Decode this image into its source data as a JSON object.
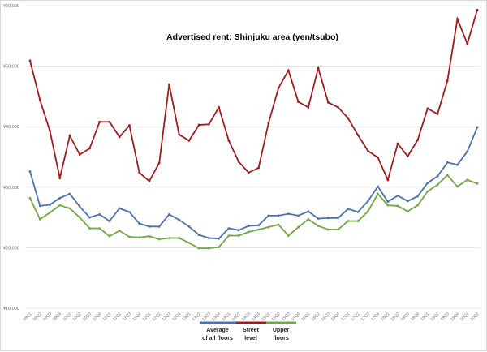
{
  "chart_data": {
    "type": "line",
    "title": "Advertised rent: Shinjuku area (yen/tsubo)",
    "xlabel": "",
    "ylabel": "",
    "ylim": [
      10000,
      60000
    ],
    "yticks": [
      "¥10,000",
      "¥20,000",
      "¥30,000",
      "¥40,000",
      "¥50,000",
      "¥60,000"
    ],
    "grid": true,
    "legend_position": "bottom",
    "categories": [
      "09Q1",
      "09Q2",
      "09Q3",
      "09Q4",
      "10Q1",
      "10Q2",
      "10Q3",
      "10Q4",
      "11Q1",
      "11Q2",
      "11Q3",
      "11Q4",
      "12Q1",
      "12Q2",
      "12Q3",
      "12Q4",
      "13Q1",
      "13Q2",
      "13Q3",
      "13Q4",
      "14Q1",
      "14Q2",
      "14Q3",
      "14Q4",
      "15Q1",
      "15Q2",
      "15Q3",
      "15Q4",
      "16Q1",
      "16Q2",
      "16Q3",
      "16Q4",
      "17Q1",
      "17Q2",
      "17Q3",
      "17Q4",
      "18Q1",
      "18Q2",
      "18Q3",
      "18Q4",
      "19Q1",
      "19Q2",
      "19Q3",
      "19Q4",
      "20Q1",
      "20Q2"
    ],
    "series": [
      {
        "name": "Average of all floors",
        "color": "#4a72b0",
        "values": [
          32600,
          26900,
          27100,
          28200,
          28900,
          26800,
          25000,
          25500,
          24400,
          26500,
          25900,
          24000,
          23500,
          23500,
          25500,
          24600,
          23500,
          22100,
          21600,
          21500,
          23200,
          22900,
          23600,
          23700,
          25300,
          25300,
          25600,
          25300,
          26000,
          24800,
          24900,
          24900,
          26400,
          25900,
          27700,
          30100,
          27600,
          28600,
          27700,
          28500,
          30700,
          31800,
          34100,
          33700,
          35900,
          39900
        ]
      },
      {
        "name": "Street level",
        "color": "#a01c1c",
        "values": [
          50900,
          44400,
          39300,
          31500,
          38500,
          35400,
          36400,
          40800,
          40800,
          38300,
          40200,
          32400,
          31000,
          34000,
          47000,
          38700,
          37700,
          40300,
          40400,
          43200,
          37700,
          34200,
          32400,
          33200,
          40600,
          46400,
          49300,
          44100,
          43200,
          49700,
          44000,
          43200,
          41400,
          38600,
          36000,
          34900,
          31200,
          37200,
          35100,
          37800,
          43000,
          42100,
          47600,
          57800,
          53700,
          59300
        ]
      },
      {
        "name": "Upper floors",
        "color": "#70a845",
        "values": [
          28200,
          24700,
          25800,
          27000,
          26500,
          25000,
          23200,
          23200,
          21900,
          22800,
          21800,
          21700,
          21900,
          21400,
          21600,
          21600,
          20800,
          19900,
          19900,
          20100,
          22000,
          22000,
          22600,
          23000,
          23400,
          23800,
          22000,
          23400,
          24700,
          23600,
          23000,
          23000,
          24400,
          24400,
          26000,
          28900,
          27000,
          26900,
          26000,
          27000,
          29300,
          30400,
          32000,
          30100,
          31200,
          30600
        ]
      }
    ]
  },
  "legend_lines": {
    "avg": [
      "Average",
      "of all floors"
    ],
    "street": [
      "Street",
      "level"
    ],
    "upper": [
      "Upper",
      "floors"
    ]
  }
}
